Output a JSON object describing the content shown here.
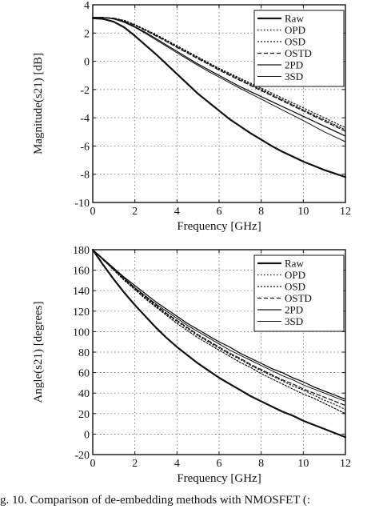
{
  "chart_data": [
    {
      "type": "line",
      "xlabel": "Frequency [GHz]",
      "ylabel": "Magnitude(s21) [dB]",
      "xlim": [
        0,
        12
      ],
      "ylim": [
        -10,
        4
      ],
      "xticks": [
        "0",
        "2",
        "4",
        "6",
        "8",
        "10",
        "12"
      ],
      "yticks": [
        "-10",
        "-8",
        "-6",
        "-4",
        "-2",
        "0",
        "2",
        "4"
      ],
      "grid": true,
      "legend_position": "top-right",
      "series": [
        {
          "name": "Raw",
          "style": "solid",
          "width": 2.2,
          "x": [
            0,
            0.5,
            1,
            1.5,
            2,
            2.5,
            3,
            3.5,
            4,
            4.5,
            5,
            5.5,
            6,
            6.5,
            7,
            7.5,
            8,
            8.5,
            9,
            9.5,
            10,
            10.5,
            11,
            11.5,
            12
          ],
          "y": [
            3.05,
            3.0,
            2.8,
            2.4,
            1.8,
            1.15,
            0.5,
            -0.2,
            -0.9,
            -1.6,
            -2.3,
            -2.9,
            -3.5,
            -4.1,
            -4.6,
            -5.1,
            -5.55,
            -6.0,
            -6.4,
            -6.75,
            -7.1,
            -7.4,
            -7.7,
            -7.95,
            -8.2
          ]
        },
        {
          "name": "OPD",
          "style": "dotted",
          "width": 1.2,
          "x": [
            0,
            0.5,
            1,
            1.5,
            2,
            2.5,
            3,
            3.5,
            4,
            4.5,
            5,
            5.5,
            6,
            6.5,
            7,
            7.5,
            8,
            8.5,
            9,
            9.5,
            10,
            10.5,
            11,
            11.5,
            12
          ],
          "y": [
            3.1,
            3.1,
            3.05,
            2.9,
            2.6,
            2.25,
            1.9,
            1.5,
            1.1,
            0.7,
            0.3,
            -0.1,
            -0.5,
            -0.85,
            -1.2,
            -1.55,
            -1.9,
            -2.25,
            -2.6,
            -2.95,
            -3.3,
            -3.65,
            -4.0,
            -4.35,
            -4.7
          ]
        },
        {
          "name": "OSD",
          "style": "dashed-fine",
          "width": 1.2,
          "x": [
            0,
            0.5,
            1,
            1.5,
            2,
            2.5,
            3,
            3.5,
            4,
            4.5,
            5,
            5.5,
            6,
            6.5,
            7,
            7.5,
            8,
            8.5,
            9,
            9.5,
            10,
            10.5,
            11,
            11.5,
            12
          ],
          "y": [
            3.1,
            3.1,
            3.05,
            2.88,
            2.58,
            2.22,
            1.85,
            1.45,
            1.05,
            0.65,
            0.25,
            -0.15,
            -0.55,
            -0.92,
            -1.28,
            -1.64,
            -2.0,
            -2.36,
            -2.72,
            -3.08,
            -3.44,
            -3.8,
            -4.15,
            -4.5,
            -4.85
          ]
        },
        {
          "name": "OSTD",
          "style": "dashed",
          "width": 1.2,
          "x": [
            0,
            0.5,
            1,
            1.5,
            2,
            2.5,
            3,
            3.5,
            4,
            4.5,
            5,
            5.5,
            6,
            6.5,
            7,
            7.5,
            8,
            8.5,
            9,
            9.5,
            10,
            10.5,
            11,
            11.5,
            12
          ],
          "y": [
            3.1,
            3.1,
            3.05,
            2.85,
            2.55,
            2.18,
            1.8,
            1.4,
            0.98,
            0.58,
            0.18,
            -0.22,
            -0.62,
            -1.0,
            -1.36,
            -1.72,
            -2.08,
            -2.44,
            -2.8,
            -3.16,
            -3.52,
            -3.88,
            -4.24,
            -4.6,
            -4.96
          ]
        },
        {
          "name": "2PD",
          "style": "solid",
          "width": 1.3,
          "x": [
            0,
            0.5,
            1,
            1.5,
            2,
            2.5,
            3,
            3.5,
            4,
            4.5,
            5,
            5.5,
            6,
            6.5,
            7,
            7.5,
            8,
            8.5,
            9,
            9.5,
            10,
            10.5,
            11,
            11.5,
            12
          ],
          "y": [
            3.1,
            3.1,
            3.0,
            2.8,
            2.45,
            2.05,
            1.6,
            1.15,
            0.7,
            0.25,
            -0.2,
            -0.6,
            -1.0,
            -1.4,
            -1.8,
            -2.15,
            -2.5,
            -2.85,
            -3.2,
            -3.55,
            -3.9,
            -4.25,
            -4.6,
            -4.95,
            -5.3
          ]
        },
        {
          "name": "3SD",
          "style": "solid",
          "width": 1.0,
          "x": [
            0,
            0.5,
            1,
            1.5,
            2,
            2.5,
            3,
            3.5,
            4,
            4.5,
            5,
            5.5,
            6,
            6.5,
            7,
            7.5,
            8,
            8.5,
            9,
            9.5,
            10,
            10.5,
            11,
            11.5,
            12
          ],
          "y": [
            3.1,
            3.1,
            3.0,
            2.75,
            2.4,
            1.98,
            1.52,
            1.06,
            0.6,
            0.15,
            -0.3,
            -0.72,
            -1.12,
            -1.52,
            -1.92,
            -2.3,
            -2.68,
            -3.06,
            -3.44,
            -3.82,
            -4.2,
            -4.6,
            -5.0,
            -5.35,
            -5.7
          ]
        }
      ]
    },
    {
      "type": "line",
      "xlabel": "Frequency [GHz]",
      "ylabel": "Angle(s21) [degrees]",
      "xlim": [
        0,
        12
      ],
      "ylim": [
        -20,
        180
      ],
      "xticks": [
        "0",
        "2",
        "4",
        "6",
        "8",
        "10",
        "12"
      ],
      "yticks": [
        "-20",
        "0",
        "20",
        "40",
        "60",
        "80",
        "100",
        "120",
        "140",
        "160",
        "180"
      ],
      "grid": true,
      "legend_position": "top-right",
      "series": [
        {
          "name": "Raw",
          "style": "solid",
          "width": 2.2,
          "x": [
            0,
            0.5,
            1,
            1.5,
            2,
            2.5,
            3,
            3.5,
            4,
            4.5,
            5,
            5.5,
            6,
            6.5,
            7,
            7.5,
            8,
            8.5,
            9,
            9.5,
            10,
            10.5,
            11,
            11.5,
            12
          ],
          "y": [
            180,
            165,
            151,
            138,
            126,
            115,
            104,
            94,
            85,
            77,
            69,
            62,
            55,
            49,
            43,
            37,
            32,
            27,
            22,
            18,
            13,
            9,
            5,
            1,
            -3
          ]
        },
        {
          "name": "OPD",
          "style": "dotted",
          "width": 1.2,
          "x": [
            0,
            0.5,
            1,
            1.5,
            2,
            2.5,
            3,
            3.5,
            4,
            4.5,
            5,
            5.5,
            6,
            6.5,
            7,
            7.5,
            8,
            8.5,
            9,
            9.5,
            10,
            10.5,
            11,
            11.5,
            12
          ],
          "y": [
            180,
            170,
            160,
            151,
            142,
            133,
            125,
            117,
            110,
            103,
            96,
            90,
            84,
            78,
            73,
            67,
            62,
            57,
            52,
            47,
            43,
            38,
            33,
            29,
            24
          ]
        },
        {
          "name": "OSD",
          "style": "dashed-fine",
          "width": 1.2,
          "x": [
            0,
            0.5,
            1,
            1.5,
            2,
            2.5,
            3,
            3.5,
            4,
            4.5,
            5,
            5.5,
            6,
            6.5,
            7,
            7.5,
            8,
            8.5,
            9,
            9.5,
            10,
            10.5,
            11,
            11.5,
            12
          ],
          "y": [
            180,
            170,
            160,
            150,
            141,
            132,
            124,
            116,
            108,
            101,
            94,
            88,
            82,
            76,
            70,
            65,
            59,
            54,
            49,
            44,
            39,
            35,
            30,
            25,
            20
          ]
        },
        {
          "name": "OSTD",
          "style": "dashed",
          "width": 1.2,
          "x": [
            0,
            0.5,
            1,
            1.5,
            2,
            2.5,
            3,
            3.5,
            4,
            4.5,
            5,
            5.5,
            6,
            6.5,
            7,
            7.5,
            8,
            8.5,
            9,
            9.5,
            10,
            10.5,
            11,
            11.5,
            12
          ],
          "y": [
            180,
            170,
            161,
            151,
            142,
            134,
            126,
            118,
            111,
            104,
            97,
            91,
            85,
            79,
            74,
            68,
            63,
            58,
            53,
            49,
            44,
            40,
            36,
            32,
            28
          ]
        },
        {
          "name": "2PD",
          "style": "solid",
          "width": 1.3,
          "x": [
            0,
            0.5,
            1,
            1.5,
            2,
            2.5,
            3,
            3.5,
            4,
            4.5,
            5,
            5.5,
            6,
            6.5,
            7,
            7.5,
            8,
            8.5,
            9,
            9.5,
            10,
            10.5,
            11,
            11.5,
            12
          ],
          "y": [
            180,
            171,
            162,
            153,
            145,
            137,
            129,
            122,
            115,
            108,
            102,
            96,
            90,
            85,
            79,
            74,
            69,
            64,
            60,
            55,
            51,
            46,
            42,
            38,
            34
          ]
        },
        {
          "name": "3SD",
          "style": "solid",
          "width": 1.0,
          "x": [
            0,
            0.5,
            1,
            1.5,
            2,
            2.5,
            3,
            3.5,
            4,
            4.5,
            5,
            5.5,
            6,
            6.5,
            7,
            7.5,
            8,
            8.5,
            9,
            9.5,
            10,
            10.5,
            11,
            11.5,
            12
          ],
          "y": [
            180,
            170,
            161,
            152,
            143,
            135,
            127,
            120,
            113,
            106,
            100,
            94,
            88,
            82,
            77,
            72,
            67,
            62,
            57,
            53,
            48,
            44,
            40,
            36,
            32
          ]
        }
      ]
    }
  ],
  "caption": "g. 10.  Comparison of de-embedding methods with NMOSFET (:"
}
